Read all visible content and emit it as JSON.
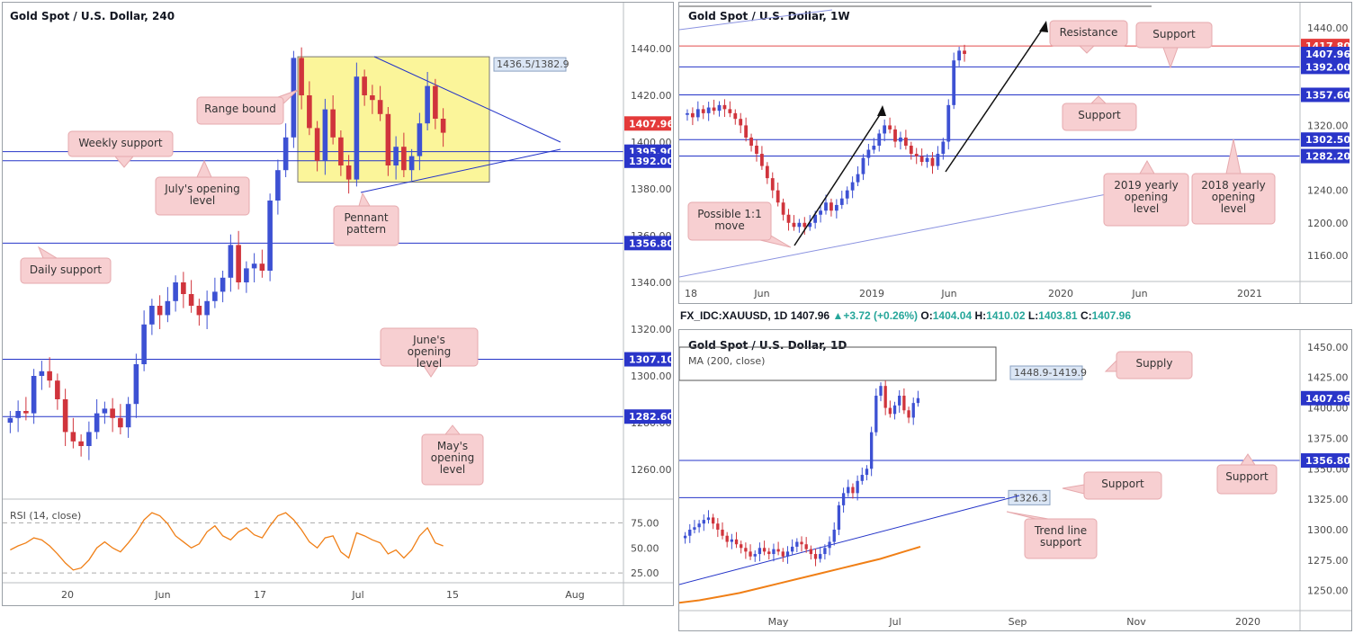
{
  "colors": {
    "up": "#3d51d3",
    "down": "#d0343c",
    "support_line": "#2434c8",
    "red_line": "#e34c4c",
    "zone": "#fbf59a",
    "callout_bg": "#f7cfd1",
    "callout_border": "#e6a9ad",
    "price_blue": "#2a35c9",
    "price_red": "#e43a3a",
    "rsi": "#f07f16",
    "ma": "#f07f16"
  },
  "chart_data": [
    {
      "id": "h4",
      "type": "line",
      "title": "Gold Spot / U.S. Dollar, 240",
      "ylim": [
        1250,
        1450
      ],
      "y_ticks": [
        "1440.00",
        "1420.00",
        "1400.00",
        "1380.00",
        "1360.00",
        "1340.00",
        "1320.00",
        "1300.00",
        "1280.00",
        "1260.00"
      ],
      "x_ticks": [
        "20",
        "Jun",
        "17",
        "Jul",
        "15",
        "Aug"
      ],
      "price_labels": [
        {
          "text": "1407.96",
          "value": 1407.96,
          "color": "red"
        },
        {
          "text": "1395.90",
          "value": 1395.9,
          "color": "blue"
        },
        {
          "text": "1392.00",
          "value": 1392.0,
          "color": "blue"
        },
        {
          "text": "1356.80",
          "value": 1356.8,
          "color": "blue"
        },
        {
          "text": "1307.10",
          "value": 1307.1,
          "color": "blue"
        },
        {
          "text": "1282.60",
          "value": 1282.6,
          "color": "blue"
        }
      ],
      "horizontal_lines": [
        1395.9,
        1392.0,
        1356.8,
        1307.1,
        1282.6
      ],
      "zone": {
        "label": "1436.5/1382.9",
        "top": 1436.5,
        "bottom": 1382.9
      },
      "annotations": [
        "Range bound",
        "Weekly support",
        "July's opening level",
        "Pennant pattern",
        "Daily support",
        "June's opening level",
        "May's opening level"
      ],
      "series": [
        {
          "values": [
            1282,
            1285,
            1284,
            1300,
            1302,
            1298,
            1290,
            1276,
            1272,
            1270,
            1276,
            1284,
            1286,
            1282,
            1278,
            1288,
            1305,
            1322,
            1330,
            1326,
            1332,
            1340,
            1335,
            1330,
            1326,
            1332,
            1336,
            1342,
            1356,
            1340,
            1346,
            1348,
            1345,
            1375,
            1388,
            1402,
            1436,
            1420,
            1406,
            1392,
            1414,
            1402,
            1390,
            1384,
            1428,
            1420,
            1418,
            1412,
            1390,
            1398,
            1388,
            1394,
            1408,
            1424,
            1410,
            1404
          ]
        }
      ]
    },
    {
      "id": "rsi",
      "type": "line",
      "title": "RSI (14, close)",
      "ylim": [
        18,
        95
      ],
      "y_ticks": [
        "75.00",
        "50.00",
        "25.00"
      ],
      "series": [
        {
          "values": [
            48,
            52,
            55,
            60,
            58,
            52,
            44,
            35,
            28,
            30,
            38,
            50,
            56,
            50,
            46,
            55,
            65,
            78,
            85,
            82,
            74,
            62,
            56,
            50,
            54,
            66,
            72,
            62,
            58,
            66,
            70,
            63,
            60,
            72,
            82,
            85,
            78,
            68,
            56,
            50,
            60,
            62,
            46,
            40,
            65,
            62,
            58,
            55,
            44,
            48,
            40,
            48,
            62,
            70,
            55,
            52
          ]
        }
      ]
    },
    {
      "id": "weekly",
      "type": "line",
      "title": "Gold Spot / U.S. Dollar, 1W",
      "ylim": [
        1130,
        1460
      ],
      "y_ticks": [
        "1440.00",
        "1400.00",
        "1360.00",
        "1320.00",
        "1280.00",
        "1240.00",
        "1200.00",
        "1160.00"
      ],
      "x_ticks": [
        "18",
        "Jun",
        "2019",
        "Jun",
        "2020",
        "Jun",
        "2021"
      ],
      "price_labels": [
        {
          "text": "1417.80",
          "value": 1417.8,
          "color": "red"
        },
        {
          "text": "1407.96",
          "value": 1407.96,
          "color": "blue"
        },
        {
          "text": "1392.00",
          "value": 1392.0,
          "color": "blue"
        },
        {
          "text": "1357.60",
          "value": 1357.6,
          "color": "blue"
        },
        {
          "text": "1302.50",
          "value": 1302.5,
          "color": "blue"
        },
        {
          "text": "1282.20",
          "value": 1282.2,
          "color": "blue"
        }
      ],
      "horizontal_lines": [
        1417.8,
        1392.0,
        1357.6,
        1302.5,
        1282.2
      ],
      "annotations": [
        "Resistance",
        "Support",
        "Support",
        "2019 yearly opening level",
        "2018 yearly opening level",
        "Possible 1:1 move"
      ],
      "series": [
        {
          "values": [
            1335,
            1330,
            1340,
            1335,
            1342,
            1338,
            1345,
            1340,
            1335,
            1328,
            1320,
            1305,
            1295,
            1285,
            1270,
            1255,
            1240,
            1225,
            1210,
            1200,
            1195,
            1200,
            1195,
            1200,
            1210,
            1215,
            1225,
            1215,
            1222,
            1230,
            1240,
            1250,
            1260,
            1280,
            1290,
            1295,
            1310,
            1320,
            1315,
            1300,
            1305,
            1295,
            1285,
            1282,
            1275,
            1280,
            1270,
            1285,
            1300,
            1345,
            1400,
            1412,
            1408
          ]
        }
      ]
    },
    {
      "id": "daily",
      "type": "line",
      "title": "Gold Spot / U.S. Dollar, 1D",
      "subtitle": "MA (200, close)",
      "info": {
        "symbol": "FX_IDC:XAUUSD, 1D",
        "last": "1407.96",
        "change": "+3.72 (+0.26%)",
        "o_label": "O:",
        "o": "1404.04",
        "h_label": "H:",
        "h": "1410.02",
        "l_label": "L:",
        "l": "1403.81",
        "c_label": "C:",
        "c": "1407.96"
      },
      "ylim": [
        1235,
        1458
      ],
      "y_ticks": [
        "1450.00",
        "1425.00",
        "1400.00",
        "1375.00",
        "1350.00",
        "1325.00",
        "1300.00",
        "1275.00",
        "1250.00"
      ],
      "x_ticks": [
        "May",
        "Jul",
        "Sep",
        "Nov",
        "2020"
      ],
      "price_labels": [
        {
          "text": "1407.96",
          "value": 1407.96,
          "color": "blue"
        },
        {
          "text": "1356.80",
          "value": 1356.8,
          "color": "blue"
        }
      ],
      "horizontal_lines": [
        1356.8,
        1326.3
      ],
      "zone": {
        "label": "1448.9-1419.9",
        "top": 1448.9,
        "bottom": 1419.9
      },
      "level_label": "1326.3",
      "annotations": [
        "Supply",
        "Support",
        "Support",
        "Trend line support"
      ],
      "series": [
        {
          "values": [
            1295,
            1300,
            1302,
            1305,
            1308,
            1310,
            1305,
            1300,
            1295,
            1290,
            1292,
            1288,
            1285,
            1282,
            1278,
            1280,
            1285,
            1282,
            1280,
            1284,
            1282,
            1278,
            1282,
            1286,
            1290,
            1288,
            1284,
            1280,
            1276,
            1280,
            1285,
            1290,
            1300,
            1320,
            1330,
            1335,
            1330,
            1340,
            1345,
            1350,
            1380,
            1410,
            1418,
            1400,
            1395,
            1402,
            1410,
            1398,
            1392,
            1404,
            1408
          ]
        },
        {
          "name": "MA (200, close)",
          "values": [
            1240,
            1242,
            1245,
            1248,
            1252,
            1256,
            1260,
            1264,
            1268,
            1272,
            1276,
            1281,
            1286
          ]
        }
      ]
    }
  ]
}
